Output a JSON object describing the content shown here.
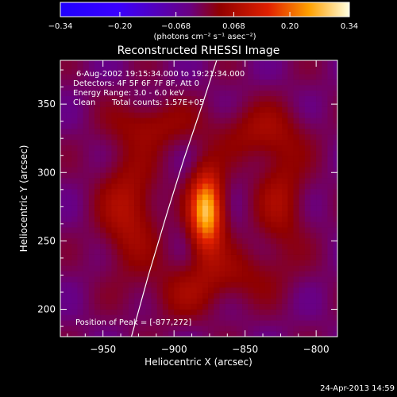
{
  "chart_data": {
    "type": "heatmap",
    "title": "Reconstructed RHESSI Image",
    "xlabel": "Heliocentric X (arcsec)",
    "ylabel": "Heliocentric Y (arcsec)",
    "xlim": [
      -980,
      -785
    ],
    "ylim": [
      180,
      382
    ],
    "x_ticks": [
      -950,
      -900,
      -850,
      -800
    ],
    "y_ticks": [
      200,
      250,
      300,
      350
    ],
    "colorbar": {
      "min": -0.34,
      "max": 0.34,
      "tick_values": [
        -0.34,
        -0.2,
        -0.068,
        0.068,
        0.2,
        0.34
      ],
      "tick_labels": [
        "−0.34",
        "−0.20",
        "−0.068",
        "0.068",
        "0.20",
        "0.34"
      ],
      "units_label": "(photons cm⁻² s⁻¹ asec⁻²)"
    },
    "annotations": {
      "time_range": "6-Aug-2002 19:15:34.000 to 19:21:34.000",
      "detectors": "Detectors: 4F 5F 6F 7F 8F, Att 0",
      "energy_range": "Energy Range: 3.0 - 6.0 keV",
      "clean_label": "Clean",
      "total_counts": "Total counts: 1.57E+05",
      "peak_position": "Position of Peak = [-877,272]"
    },
    "peak": {
      "x": -877,
      "y": 272,
      "value": 0.34
    },
    "sources": [
      {
        "x": -877,
        "y": 272,
        "amp": 0.3,
        "sx": 8,
        "sy": 20
      },
      {
        "x": -932,
        "y": 272,
        "amp": 0.1,
        "sx": 14,
        "sy": 30
      },
      {
        "x": -915,
        "y": 335,
        "amp": 0.07,
        "sx": 20,
        "sy": 12
      },
      {
        "x": -840,
        "y": 330,
        "amp": 0.07,
        "sx": 22,
        "sy": 14
      },
      {
        "x": -825,
        "y": 280,
        "amp": 0.08,
        "sx": 12,
        "sy": 28
      },
      {
        "x": -860,
        "y": 225,
        "amp": 0.06,
        "sx": 25,
        "sy": 14
      },
      {
        "x": -895,
        "y": 210,
        "amp": 0.05,
        "sx": 18,
        "sy": 14
      }
    ],
    "limb_curve": [
      [
        -930,
        180
      ],
      [
        -918,
        225
      ],
      [
        -905,
        270
      ],
      [
        -893,
        310
      ],
      [
        -880,
        350
      ],
      [
        -870,
        382
      ]
    ]
  },
  "timestamp": "24-Apr-2013 14:59"
}
